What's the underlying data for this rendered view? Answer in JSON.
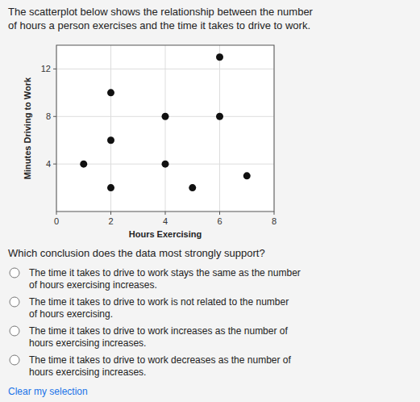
{
  "chart_data": {
    "type": "scatter",
    "title": [
      "The scatterplot below shows the relationship between the number",
      "of hours a person exercises and the time it takes to drive to work."
    ],
    "x_label": "Hours Exercising",
    "y_label": "Minutes Driving to Work",
    "x": [
      1,
      2,
      2,
      2,
      4,
      4,
      5,
      6,
      6,
      7
    ],
    "values": [
      4,
      10,
      6,
      2,
      8,
      4,
      2,
      8,
      13,
      3
    ],
    "color": "#111111",
    "xlim": [
      0,
      8
    ],
    "ylim": [
      0,
      14
    ],
    "xticks": [
      0,
      2,
      4,
      6,
      8
    ],
    "yticks": [
      4,
      8,
      12
    ],
    "grid": true
  },
  "question": "Which conclusion does the data most strongly support?",
  "options": [
    "The time it takes to drive to work stays the same as the number\nof hours exercising increases.",
    "The time it takes to drive to work is not related to the number\nof hours exercising.",
    "The time it takes to drive to work increases as the number of\nhours exercising increases.",
    "The time it takes to drive to work decreases as the number of\nhours exercising increases."
  ],
  "footer": "Clear my selection"
}
